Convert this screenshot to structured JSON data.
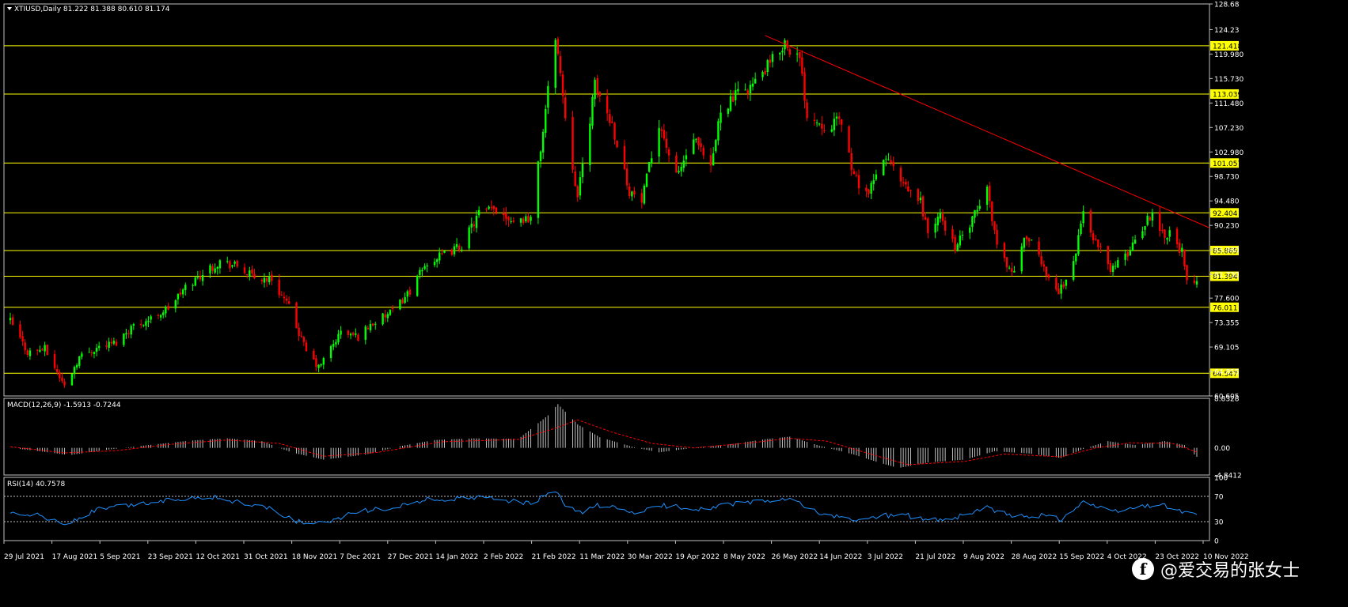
{
  "colors": {
    "background": "#000000",
    "frame": "#c0c0c0",
    "bull": "#00ff00",
    "bear": "#ff0000",
    "level": "#ffff00",
    "trendline": "#ff0000",
    "macd_hist": "#c0c0c0",
    "macd_signal": "#ff0000",
    "rsi_line": "#1e90ff",
    "rsi_level": "#c0c0c0",
    "text": "#ffffff"
  },
  "header": {
    "title": "XTIUSD,Daily  81.222 81.388 80.610 81.174"
  },
  "chart_data": {
    "type": "candlestick",
    "symbol": "XTIUSD",
    "timeframe": "Daily",
    "ylim": [
      60.605,
      128.68
    ],
    "y_ticks": [
      "128.68",
      "124.23",
      "119.980",
      "115.730",
      "111.480",
      "107.230",
      "102.980",
      "98.730",
      "94.480",
      "90.230",
      "85.980",
      "81.730",
      "77.600",
      "73.355",
      "69.105",
      "64.855",
      "60.605"
    ],
    "x_ticks": [
      "29 Jul 2021",
      "17 Aug 2021",
      "5 Sep 2021",
      "23 Sep 2021",
      "12 Oct 2021",
      "31 Oct 2021",
      "18 Nov 2021",
      "7 Dec 2021",
      "27 Dec 2021",
      "14 Jan 2022",
      "2 Feb 2022",
      "21 Feb 2022",
      "11 Mar 2022",
      "30 Mar 2022",
      "19 Apr 2022",
      "8 May 2022",
      "26 May 2022",
      "14 Jun 2022",
      "3 Jul 2022",
      "21 Jul 2022",
      "9 Aug 2022",
      "28 Aug 2022",
      "15 Sep 2022",
      "4 Oct 2022",
      "23 Oct 2022",
      "10 Nov 2022"
    ],
    "x_range": [
      "2021-07-29",
      "2022-11-22"
    ],
    "close_path": [
      [
        "2021-07-29",
        73.6
      ],
      [
        "2021-08-05",
        68.2
      ],
      [
        "2021-08-12",
        68.8
      ],
      [
        "2021-08-20",
        62.3
      ],
      [
        "2021-08-26",
        67.4
      ],
      [
        "2021-09-03",
        69.2
      ],
      [
        "2021-09-10",
        69.9
      ],
      [
        "2021-09-16",
        72.6
      ],
      [
        "2021-09-24",
        74.0
      ],
      [
        "2021-10-01",
        75.9
      ],
      [
        "2021-10-08",
        79.4
      ],
      [
        "2021-10-15",
        81.9
      ],
      [
        "2021-10-22",
        84.0
      ],
      [
        "2021-10-29",
        83.1
      ],
      [
        "2021-11-05",
        81.1
      ],
      [
        "2021-11-12",
        80.9
      ],
      [
        "2021-11-19",
        75.9
      ],
      [
        "2021-11-26",
        68.3
      ],
      [
        "2021-12-01",
        65.5
      ],
      [
        "2021-12-10",
        71.7
      ],
      [
        "2021-12-17",
        70.9
      ],
      [
        "2021-12-22",
        73.0
      ],
      [
        "2021-12-31",
        75.2
      ],
      [
        "2022-01-07",
        78.9
      ],
      [
        "2022-01-14",
        83.8
      ],
      [
        "2022-01-21",
        85.1
      ],
      [
        "2022-01-28",
        86.8
      ],
      [
        "2022-02-04",
        92.3
      ],
      [
        "2022-02-11",
        93.1
      ],
      [
        "2022-02-18",
        91.1
      ],
      [
        "2022-02-25",
        91.6
      ],
      [
        "2022-03-01",
        103.5
      ],
      [
        "2022-03-07",
        123.5
      ],
      [
        "2022-03-11",
        109.3
      ],
      [
        "2022-03-16",
        95.0
      ],
      [
        "2022-03-23",
        114.5
      ],
      [
        "2022-03-30",
        107.8
      ],
      [
        "2022-04-06",
        96.2
      ],
      [
        "2022-04-11",
        94.3
      ],
      [
        "2022-04-18",
        108.2
      ],
      [
        "2022-04-25",
        98.5
      ],
      [
        "2022-05-02",
        105.2
      ],
      [
        "2022-05-09",
        99.8
      ],
      [
        "2022-05-13",
        110.5
      ],
      [
        "2022-05-20",
        113.0
      ],
      [
        "2022-05-27",
        115.0
      ],
      [
        "2022-06-03",
        118.9
      ],
      [
        "2022-06-08",
        122.1
      ],
      [
        "2022-06-14",
        118.9
      ],
      [
        "2022-06-17",
        109.6
      ],
      [
        "2022-06-24",
        107.6
      ],
      [
        "2022-07-01",
        108.4
      ],
      [
        "2022-07-06",
        98.5
      ],
      [
        "2022-07-12",
        95.8
      ],
      [
        "2022-07-19",
        102.3
      ],
      [
        "2022-07-26",
        96.9
      ],
      [
        "2022-08-02",
        94.4
      ],
      [
        "2022-08-05",
        89.0
      ],
      [
        "2022-08-10",
        91.8
      ],
      [
        "2022-08-16",
        86.5
      ],
      [
        "2022-08-22",
        90.2
      ],
      [
        "2022-08-29",
        96.5
      ],
      [
        "2022-09-02",
        86.9
      ],
      [
        "2022-09-08",
        81.9
      ],
      [
        "2022-09-14",
        88.5
      ],
      [
        "2022-09-21",
        82.9
      ],
      [
        "2022-09-27",
        78.5
      ],
      [
        "2022-10-03",
        83.6
      ],
      [
        "2022-10-07",
        92.6
      ],
      [
        "2022-10-12",
        87.3
      ],
      [
        "2022-10-18",
        82.8
      ],
      [
        "2022-10-24",
        84.6
      ],
      [
        "2022-10-28",
        87.9
      ],
      [
        "2022-11-04",
        92.6
      ],
      [
        "2022-11-08",
        88.9
      ],
      [
        "2022-11-11",
        88.9
      ],
      [
        "2022-11-16",
        85.6
      ],
      [
        "2022-11-18",
        80.1
      ],
      [
        "2022-11-21",
        79.7
      ],
      [
        "2022-11-22",
        81.174
      ]
    ],
    "horizontal_levels": [
      121.418,
      113.039,
      101.057,
      92.404,
      85.865,
      81.394,
      76.011,
      64.547
    ],
    "level_labels": [
      "121.418",
      "113.039",
      "101.057",
      "92.404",
      "85.865",
      "81.394",
      "76.011",
      "64.547"
    ],
    "trendline": [
      [
        "2022-05-31",
        123.2
      ],
      [
        "2022-11-22",
        89.8
      ]
    ],
    "macd": {
      "label": "MACD(12,26,9) -1.5913 -0.7244",
      "ylim": [
        -4.8412,
        8.8328
      ],
      "y_ticks": [
        "8.8328",
        "0.00",
        "-4.8412"
      ],
      "hist_path": [
        [
          "2021-07-29",
          0.0
        ],
        [
          "2021-08-10",
          -0.6
        ],
        [
          "2021-08-22",
          -1.3
        ],
        [
          "2021-09-05",
          -0.4
        ],
        [
          "2021-09-23",
          0.5
        ],
        [
          "2021-10-10",
          1.3
        ],
        [
          "2021-10-25",
          1.7
        ],
        [
          "2021-11-08",
          1.2
        ],
        [
          "2021-11-20",
          -0.8
        ],
        [
          "2021-12-03",
          -2.1
        ],
        [
          "2021-12-20",
          -1.2
        ],
        [
          "2022-01-03",
          0.3
        ],
        [
          "2022-01-17",
          1.4
        ],
        [
          "2022-02-02",
          1.7
        ],
        [
          "2022-02-20",
          1.6
        ],
        [
          "2022-03-04",
          5.8
        ],
        [
          "2022-03-08",
          7.8
        ],
        [
          "2022-03-16",
          4.2
        ],
        [
          "2022-03-25",
          1.9
        ],
        [
          "2022-04-08",
          0.1
        ],
        [
          "2022-04-18",
          -0.8
        ],
        [
          "2022-05-02",
          0.0
        ],
        [
          "2022-05-16",
          0.6
        ],
        [
          "2022-06-01",
          1.6
        ],
        [
          "2022-06-10",
          2.0
        ],
        [
          "2022-06-22",
          0.4
        ],
        [
          "2022-07-06",
          -1.2
        ],
        [
          "2022-07-16",
          -2.6
        ],
        [
          "2022-07-24",
          -3.6
        ],
        [
          "2022-08-05",
          -2.6
        ],
        [
          "2022-08-20",
          -2.1
        ],
        [
          "2022-09-01",
          -0.6
        ],
        [
          "2022-09-15",
          -1.0
        ],
        [
          "2022-09-28",
          -1.8
        ],
        [
          "2022-10-07",
          -0.2
        ],
        [
          "2022-10-17",
          1.2
        ],
        [
          "2022-10-28",
          0.5
        ],
        [
          "2022-11-09",
          1.2
        ],
        [
          "2022-11-17",
          0.5
        ],
        [
          "2022-11-22",
          -1.5913
        ]
      ],
      "signal_path": [
        [
          "2021-07-29",
          0.2
        ],
        [
          "2021-08-20",
          -0.9
        ],
        [
          "2021-09-10",
          -0.5
        ],
        [
          "2021-10-01",
          0.6
        ],
        [
          "2021-10-25",
          1.4
        ],
        [
          "2021-11-15",
          0.8
        ],
        [
          "2021-12-03",
          -1.5
        ],
        [
          "2021-12-25",
          -0.8
        ],
        [
          "2022-01-20",
          1.1
        ],
        [
          "2022-02-20",
          1.5
        ],
        [
          "2022-03-07",
          3.5
        ],
        [
          "2022-03-16",
          5.0
        ],
        [
          "2022-03-30",
          2.8
        ],
        [
          "2022-04-15",
          0.8
        ],
        [
          "2022-05-02",
          0.0
        ],
        [
          "2022-05-25",
          0.9
        ],
        [
          "2022-06-10",
          1.7
        ],
        [
          "2022-06-25",
          1.2
        ],
        [
          "2022-07-15",
          -1.4
        ],
        [
          "2022-07-28",
          -3.0
        ],
        [
          "2022-08-20",
          -2.4
        ],
        [
          "2022-09-05",
          -1.1
        ],
        [
          "2022-09-28",
          -1.6
        ],
        [
          "2022-10-12",
          0.0
        ],
        [
          "2022-10-26",
          0.9
        ],
        [
          "2022-11-12",
          0.8
        ],
        [
          "2022-11-22",
          -0.7244
        ]
      ]
    },
    "rsi": {
      "label": "RSI(14) 40.7578",
      "ylim": [
        0,
        100
      ],
      "y_ticks": [
        "100",
        "70",
        "30",
        "0"
      ],
      "levels": [
        70,
        30
      ],
      "path": [
        [
          "2021-07-29",
          45
        ],
        [
          "2021-08-10",
          40
        ],
        [
          "2021-08-20",
          25
        ],
        [
          "2021-09-03",
          50
        ],
        [
          "2021-09-20",
          58
        ],
        [
          "2021-10-05",
          66
        ],
        [
          "2021-10-18",
          70
        ],
        [
          "2021-10-30",
          60
        ],
        [
          "2021-11-10",
          52
        ],
        [
          "2021-11-22",
          30
        ],
        [
          "2021-12-03",
          26
        ],
        [
          "2021-12-15",
          45
        ],
        [
          "2021-12-31",
          52
        ],
        [
          "2022-01-14",
          65
        ],
        [
          "2022-01-28",
          66
        ],
        [
          "2022-02-10",
          68
        ],
        [
          "2022-02-24",
          58
        ],
        [
          "2022-03-07",
          78
        ],
        [
          "2022-03-11",
          55
        ],
        [
          "2022-03-18",
          42
        ],
        [
          "2022-03-24",
          57
        ],
        [
          "2022-04-08",
          44
        ],
        [
          "2022-04-20",
          55
        ],
        [
          "2022-05-05",
          50
        ],
        [
          "2022-05-18",
          58
        ],
        [
          "2022-06-08",
          65
        ],
        [
          "2022-06-15",
          58
        ],
        [
          "2022-06-22",
          42
        ],
        [
          "2022-07-07",
          32
        ],
        [
          "2022-07-15",
          38
        ],
        [
          "2022-07-25",
          42
        ],
        [
          "2022-08-05",
          32
        ],
        [
          "2022-08-16",
          36
        ],
        [
          "2022-08-29",
          52
        ],
        [
          "2022-09-08",
          38
        ],
        [
          "2022-09-21",
          40
        ],
        [
          "2022-09-28",
          34
        ],
        [
          "2022-10-07",
          62
        ],
        [
          "2022-10-18",
          45
        ],
        [
          "2022-10-28",
          52
        ],
        [
          "2022-11-07",
          58
        ],
        [
          "2022-11-15",
          47
        ],
        [
          "2022-11-22",
          40.7578
        ]
      ]
    }
  },
  "watermark": {
    "icon": "facebook-icon",
    "text": "@爱交易的张女士"
  }
}
